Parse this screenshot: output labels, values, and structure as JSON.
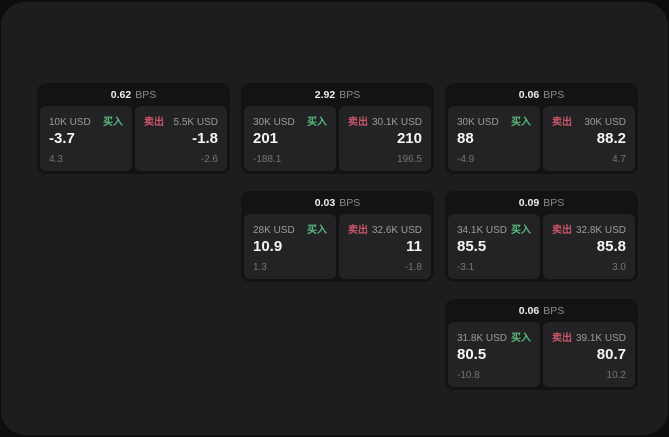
{
  "labels": {
    "bps_unit": "BPS",
    "buy": "买入",
    "sell": "卖出"
  },
  "colors": {
    "outer_bg": "#0d0d0d",
    "window_bg": "#1d1d1f",
    "card_bg": "#131314",
    "panel_bg": "#232325",
    "buy_accent": "#5ab97d",
    "sell_accent": "#c85569",
    "value_text": "#f4f4f4",
    "muted_text": "#9c9c9c"
  },
  "cards": [
    {
      "row": 1,
      "col": 1,
      "bps": "0.62",
      "buy": {
        "amount": "10K USD",
        "value": "-3.7",
        "sub": "4.3"
      },
      "sell": {
        "amount": "5.5K USD",
        "value": "-1.8",
        "sub": "-2.6"
      }
    },
    {
      "row": 1,
      "col": 2,
      "bps": "2.92",
      "buy": {
        "amount": "30K USD",
        "value": "201",
        "sub": "-188.1"
      },
      "sell": {
        "amount": "30.1K USD",
        "value": "210",
        "sub": "196.5"
      }
    },
    {
      "row": 1,
      "col": 3,
      "bps": "0.06",
      "buy": {
        "amount": "30K USD",
        "value": "88",
        "sub": "-4.9"
      },
      "sell": {
        "amount": "30K USD",
        "value": "88.2",
        "sub": "4.7"
      }
    },
    {
      "row": 2,
      "col": 2,
      "bps": "0.03",
      "buy": {
        "amount": "28K USD",
        "value": "10.9",
        "sub": "1.3"
      },
      "sell": {
        "amount": "32.6K USD",
        "value": "11",
        "sub": "-1.8"
      }
    },
    {
      "row": 2,
      "col": 3,
      "bps": "0.09",
      "buy": {
        "amount": "34.1K USD",
        "value": "85.5",
        "sub": "-3.1"
      },
      "sell": {
        "amount": "32.8K USD",
        "value": "85.8",
        "sub": "3.0"
      }
    },
    {
      "row": 3,
      "col": 3,
      "bps": "0.06",
      "buy": {
        "amount": "31.8K USD",
        "value": "80.5",
        "sub": "-10.8"
      },
      "sell": {
        "amount": "39.1K USD",
        "value": "80.7",
        "sub": "10.2"
      }
    }
  ]
}
